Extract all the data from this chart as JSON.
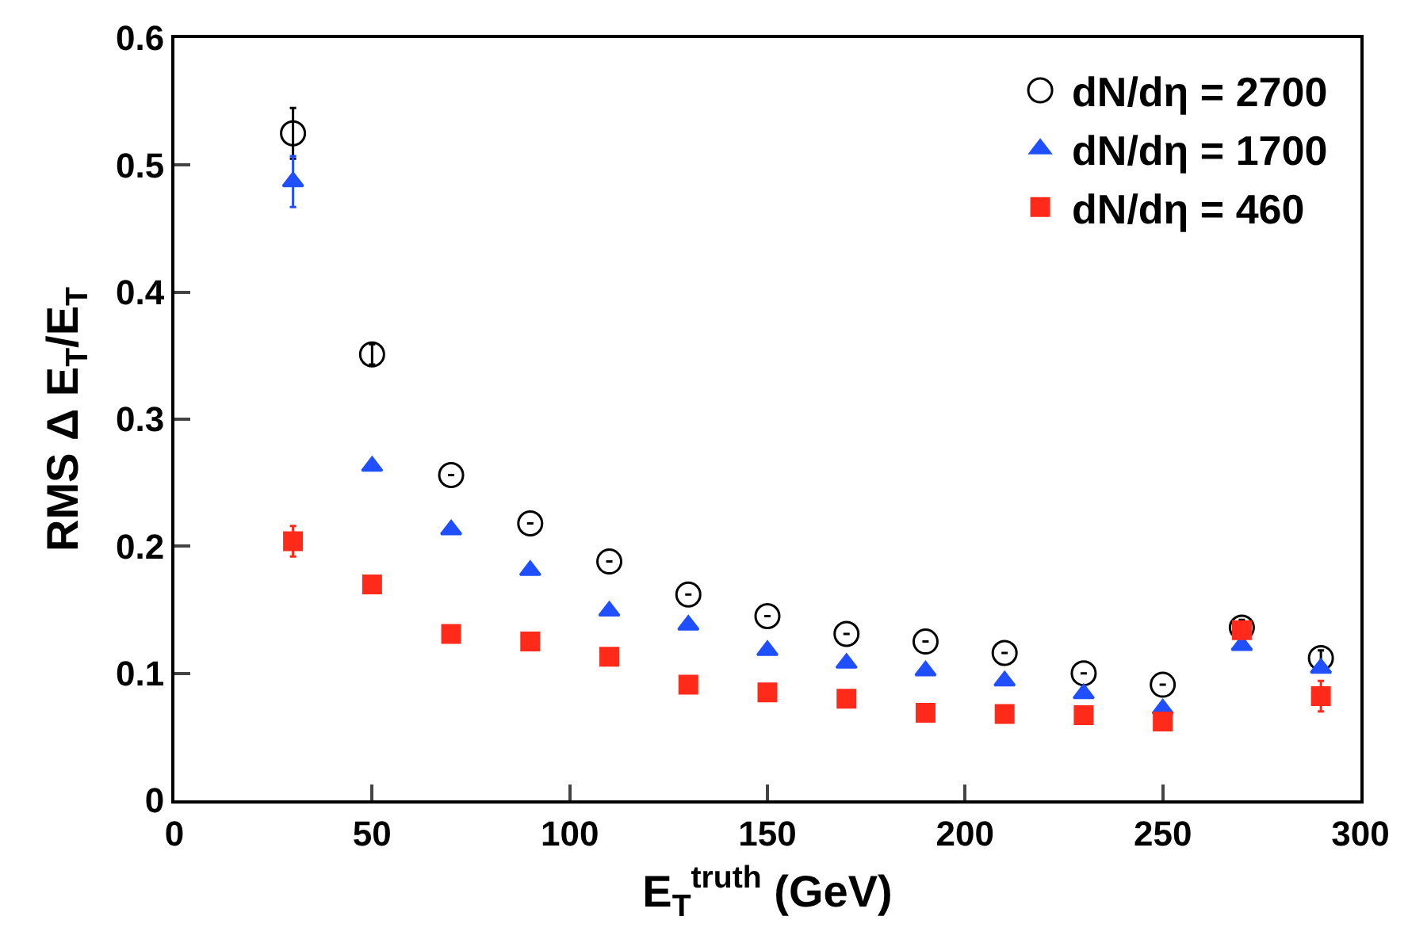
{
  "chart_data": {
    "type": "scatter",
    "xlabel": "E$_{T}$$^{truth}$ (GeV)",
    "ylabel": "RMS Δ E$_{T}$/E$_{T}$",
    "x": [
      30,
      50,
      70,
      90,
      110,
      130,
      150,
      170,
      190,
      210,
      230,
      250,
      270,
      290
    ],
    "series": [
      {
        "name": "dN/dη = 2700",
        "color": "#000000",
        "marker": "circle-open",
        "values": [
          0.525,
          0.351,
          0.256,
          0.218,
          0.188,
          0.162,
          0.145,
          0.131,
          0.125,
          0.116,
          0.1,
          0.091,
          0.136,
          0.112
        ],
        "errors": [
          0.02,
          0.008,
          null,
          null,
          null,
          null,
          null,
          null,
          null,
          null,
          null,
          null,
          0.006,
          0.006
        ]
      },
      {
        "name": "dN/dη = 1700",
        "color": "#1f4fff",
        "marker": "triangle",
        "values": [
          0.487,
          0.263,
          0.213,
          0.181,
          0.149,
          0.138,
          0.118,
          0.108,
          0.102,
          0.094,
          0.084,
          0.072,
          0.122,
          0.104
        ],
        "errors": [
          0.02,
          null,
          null,
          null,
          null,
          null,
          null,
          null,
          null,
          null,
          null,
          null,
          null,
          null
        ]
      },
      {
        "name": "dN/dη = 460",
        "color": "#ff2a1a",
        "marker": "square",
        "values": [
          0.204,
          0.17,
          0.131,
          0.125,
          0.113,
          0.091,
          0.085,
          0.08,
          0.069,
          0.068,
          0.067,
          0.062,
          0.134,
          0.082
        ],
        "errors": [
          0.012,
          null,
          null,
          null,
          null,
          null,
          null,
          null,
          null,
          null,
          null,
          null,
          null,
          0.012
        ]
      }
    ],
    "xlim": [
      0,
      300
    ],
    "xticks": [
      0,
      50,
      100,
      150,
      200,
      250,
      300
    ],
    "ylim": [
      0,
      0.6
    ],
    "yticks": [
      {
        "value": 0,
        "label": "0"
      },
      0.1,
      0.2,
      0.3,
      0.4,
      0.5,
      0.6
    ],
    "legend": "top right"
  }
}
